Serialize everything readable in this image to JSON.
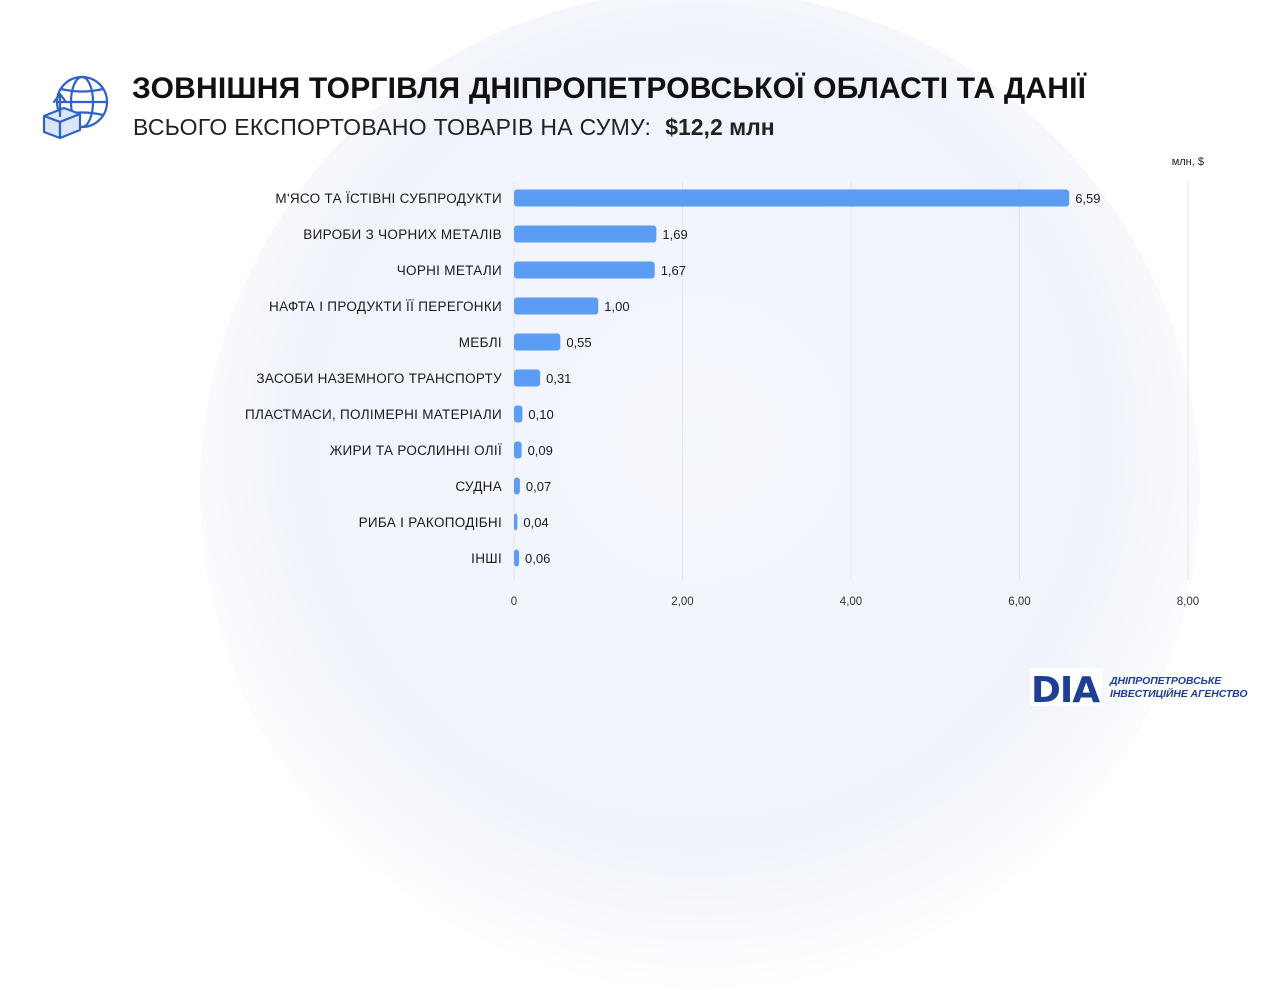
{
  "header": {
    "title": "ЗОВНІШНЯ ТОРГІВЛЯ ДНІПРОПЕТРОВСЬКОЇ ОБЛАСТІ ТА ДАНІЇ",
    "subtitle_label": "ВСЬОГО ЕКСПОРТОВАНО ТОВАРІВ НА СУМУ:",
    "subtitle_value": "$12,2 млн",
    "icon": "globe-export-icon"
  },
  "chart_data": {
    "type": "bar",
    "orientation": "horizontal",
    "unit_label": "млн, $",
    "categories": [
      "М'ЯСО ТА ЇСТІВНІ СУБПРОДУКТИ",
      "ВИРОБИ З ЧОРНИХ МЕТАЛІВ",
      "ЧОРНІ МЕТАЛИ",
      "НАФТА І ПРОДУКТИ ЇЇ ПЕРЕГОНКИ",
      "МЕБЛІ",
      "ЗАСОБИ НАЗЕМНОГО ТРАНСПОРТУ",
      "ПЛАСТМАСИ, ПОЛІМЕРНІ МАТЕРІАЛИ",
      "ЖИРИ ТА РОСЛИННІ ОЛІЇ",
      "СУДНА",
      "РИБА І РАКОПОДІБНІ",
      "ІНШІ"
    ],
    "values": [
      6.59,
      1.69,
      1.67,
      1.0,
      0.55,
      0.31,
      0.1,
      0.09,
      0.07,
      0.04,
      0.06
    ],
    "value_labels": [
      "6,59",
      "1,69",
      "1,67",
      "1,00",
      "0,55",
      "0,31",
      "0,10",
      "0,09",
      "0,07",
      "0,04",
      "0,06"
    ],
    "x_ticks": [
      0,
      2,
      4,
      6,
      8
    ],
    "x_tick_labels": [
      "0",
      "2,00",
      "4,00",
      "6,00",
      "8,00"
    ],
    "bar_color": "#5b9cf5",
    "grid": true
  },
  "logo": {
    "mark": "DIA",
    "line1": "ДНІПРОПЕТРОВСЬКЕ",
    "line2": "ІНВЕСТИЦІЙНЕ АГЕНСТВО",
    "color": "#1f3f94"
  }
}
